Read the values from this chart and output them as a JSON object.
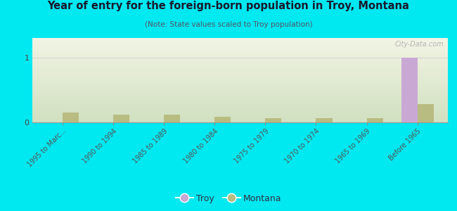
{
  "title": "Year of entry for the foreign-born population in Troy, Montana",
  "subtitle": "(Note: State values scaled to Troy population)",
  "categories": [
    "1995 to Marc...",
    "1990 to 1994",
    "1985 to 1989",
    "1980 to 1984",
    "1975 to 1979",
    "1970 to 1974",
    "1965 to 1969",
    "Before 1965"
  ],
  "troy_values": [
    0,
    0,
    0,
    0,
    0,
    0,
    0,
    1
  ],
  "montana_values": [
    0.15,
    0.12,
    0.12,
    0.09,
    0.07,
    0.07,
    0.06,
    0.28
  ],
  "troy_color": "#c9a8d4",
  "montana_color": "#b8bc80",
  "background_color": "#00e8f0",
  "plot_bg_top": "#d0e0c0",
  "plot_bg_bottom": "#f2f4e4",
  "ylim": [
    0,
    1.3
  ],
  "yticks": [
    0,
    1
  ],
  "bar_width": 0.32,
  "watermark": "City-Data.com"
}
